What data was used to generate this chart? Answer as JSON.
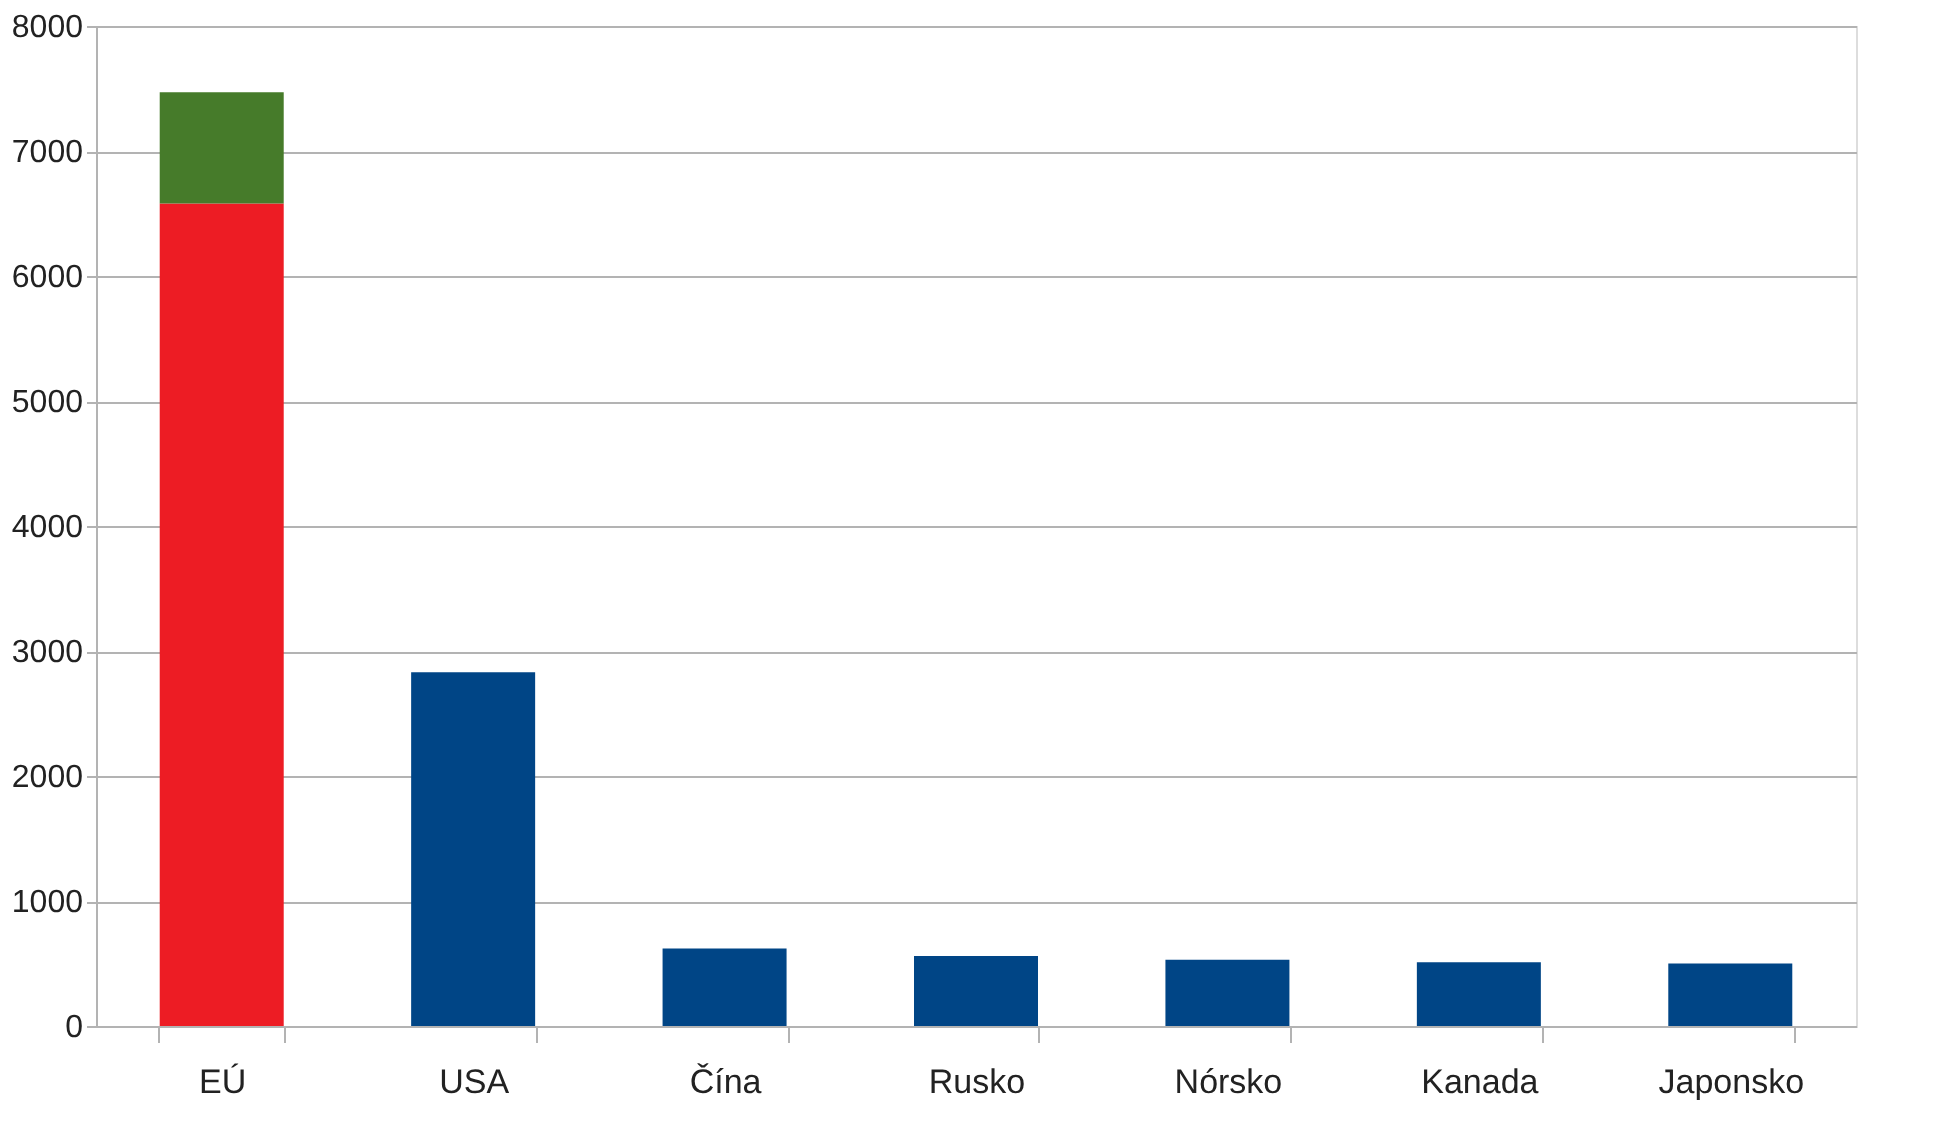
{
  "chart_data": {
    "type": "bar",
    "stacked": true,
    "categories": [
      "EÚ",
      "USA",
      "Čína",
      "Rusko",
      "Nórsko",
      "Kanada",
      "Japonsko"
    ],
    "series": [
      {
        "color": "#ed1c24",
        "values": [
          6580,
          null,
          null,
          null,
          null,
          null,
          null
        ]
      },
      {
        "color": "#467b2a",
        "values": [
          890,
          null,
          null,
          null,
          null,
          null,
          null
        ]
      },
      {
        "color": "#004586",
        "values": [
          null,
          2830,
          620,
          560,
          530,
          510,
          500
        ]
      }
    ],
    "ylim": [
      0,
      8000
    ],
    "yticks": [
      0,
      1000,
      2000,
      3000,
      4000,
      5000,
      6000,
      7000,
      8000
    ],
    "grid": "y",
    "legend": false
  }
}
